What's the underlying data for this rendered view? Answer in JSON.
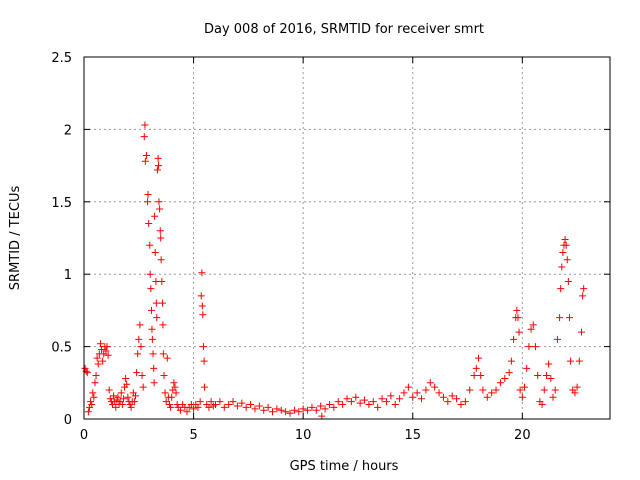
{
  "chart_data": {
    "type": "scatter",
    "title": "Day 008 of 2016, SRMTID for receiver smrt",
    "xlabel": "GPS time / hours",
    "ylabel": "SRMTID / TECUs",
    "xlim": [
      0,
      24
    ],
    "ylim": [
      0,
      2.5
    ],
    "xticks": [
      0,
      5,
      10,
      15,
      20
    ],
    "xtick_labels": [
      "0",
      "5",
      "10",
      "15",
      "20"
    ],
    "yticks": [
      0,
      0.5,
      1,
      1.5,
      2,
      2.5
    ],
    "ytick_labels": [
      "0",
      "0.5",
      "1",
      "1.5",
      "2",
      "2.5"
    ],
    "grid": true,
    "marker": "+",
    "color": "#ff0000",
    "series": [
      {
        "name": "SRMTID",
        "points": [
          [
            0.05,
            0.35
          ],
          [
            0.1,
            0.33
          ],
          [
            0.15,
            0.32
          ],
          [
            0.2,
            0.05
          ],
          [
            0.25,
            0.08
          ],
          [
            0.3,
            0.12
          ],
          [
            0.35,
            0.1
          ],
          [
            0.4,
            0.18
          ],
          [
            0.45,
            0.15
          ],
          [
            0.5,
            0.25
          ],
          [
            0.55,
            0.3
          ],
          [
            0.6,
            0.42
          ],
          [
            0.65,
            0.38
          ],
          [
            0.7,
            0.45
          ],
          [
            0.75,
            0.52
          ],
          [
            0.8,
            0.48
          ],
          [
            0.85,
            0.4
          ],
          [
            0.9,
            0.45
          ],
          [
            0.95,
            0.5
          ],
          [
            1.0,
            0.47
          ],
          [
            1.05,
            0.5
          ],
          [
            1.1,
            0.44
          ],
          [
            1.15,
            0.2
          ],
          [
            1.2,
            0.14
          ],
          [
            1.25,
            0.12
          ],
          [
            1.3,
            0.1
          ],
          [
            1.35,
            0.16
          ],
          [
            1.4,
            0.12
          ],
          [
            1.45,
            0.08
          ],
          [
            1.5,
            0.13
          ],
          [
            1.55,
            0.15
          ],
          [
            1.6,
            0.1
          ],
          [
            1.65,
            0.12
          ],
          [
            1.7,
            0.18
          ],
          [
            1.75,
            0.1
          ],
          [
            1.8,
            0.14
          ],
          [
            1.85,
            0.22
          ],
          [
            1.9,
            0.28
          ],
          [
            1.95,
            0.24
          ],
          [
            2.0,
            0.15
          ],
          [
            2.05,
            0.12
          ],
          [
            2.1,
            0.1
          ],
          [
            2.15,
            0.08
          ],
          [
            2.2,
            0.12
          ],
          [
            2.25,
            0.18
          ],
          [
            2.3,
            0.12
          ],
          [
            2.35,
            0.16
          ],
          [
            2.4,
            0.32
          ],
          [
            2.45,
            0.45
          ],
          [
            2.5,
            0.55
          ],
          [
            2.55,
            0.65
          ],
          [
            2.6,
            0.5
          ],
          [
            2.65,
            0.3
          ],
          [
            2.7,
            0.22
          ],
          [
            2.75,
            1.95
          ],
          [
            2.78,
            2.03
          ],
          [
            2.8,
            1.78
          ],
          [
            2.85,
            1.82
          ],
          [
            2.9,
            1.5
          ],
          [
            2.92,
            1.55
          ],
          [
            2.95,
            1.35
          ],
          [
            3.0,
            1.2
          ],
          [
            3.02,
            1.0
          ],
          [
            3.05,
            0.9
          ],
          [
            3.08,
            0.75
          ],
          [
            3.1,
            0.62
          ],
          [
            3.12,
            0.55
          ],
          [
            3.15,
            0.45
          ],
          [
            3.18,
            0.35
          ],
          [
            3.2,
            0.25
          ],
          [
            3.22,
            1.4
          ],
          [
            3.25,
            1.15
          ],
          [
            3.28,
            0.95
          ],
          [
            3.3,
            0.8
          ],
          [
            3.32,
            0.7
          ],
          [
            3.35,
            1.72
          ],
          [
            3.38,
            1.8
          ],
          [
            3.4,
            1.75
          ],
          [
            3.42,
            1.5
          ],
          [
            3.45,
            1.45
          ],
          [
            3.48,
            1.3
          ],
          [
            3.5,
            1.25
          ],
          [
            3.52,
            1.1
          ],
          [
            3.55,
            0.95
          ],
          [
            3.58,
            0.8
          ],
          [
            3.6,
            0.65
          ],
          [
            3.62,
            0.45
          ],
          [
            3.65,
            0.3
          ],
          [
            3.7,
            0.18
          ],
          [
            3.75,
            0.12
          ],
          [
            3.8,
            0.42
          ],
          [
            3.85,
            0.15
          ],
          [
            3.9,
            0.1
          ],
          [
            3.95,
            0.08
          ],
          [
            4.0,
            0.15
          ],
          [
            4.05,
            0.2
          ],
          [
            4.1,
            0.25
          ],
          [
            4.15,
            0.22
          ],
          [
            4.2,
            0.18
          ],
          [
            4.25,
            0.1
          ],
          [
            4.3,
            0.08
          ],
          [
            4.4,
            0.06
          ],
          [
            4.5,
            0.1
          ],
          [
            4.6,
            0.08
          ],
          [
            4.7,
            0.05
          ],
          [
            4.8,
            0.08
          ],
          [
            4.9,
            0.1
          ],
          [
            5.0,
            0.07
          ],
          [
            5.1,
            0.1
          ],
          [
            5.2,
            0.08
          ],
          [
            5.3,
            0.12
          ],
          [
            5.35,
            0.85
          ],
          [
            5.38,
            1.01
          ],
          [
            5.4,
            0.78
          ],
          [
            5.42,
            0.72
          ],
          [
            5.45,
            0.5
          ],
          [
            5.48,
            0.4
          ],
          [
            5.5,
            0.22
          ],
          [
            5.6,
            0.1
          ],
          [
            5.7,
            0.08
          ],
          [
            5.8,
            0.12
          ],
          [
            5.9,
            0.09
          ],
          [
            6.0,
            0.1
          ],
          [
            6.2,
            0.12
          ],
          [
            6.4,
            0.08
          ],
          [
            6.6,
            0.1
          ],
          [
            6.8,
            0.12
          ],
          [
            7.0,
            0.09
          ],
          [
            7.2,
            0.11
          ],
          [
            7.4,
            0.08
          ],
          [
            7.6,
            0.1
          ],
          [
            7.8,
            0.07
          ],
          [
            8.0,
            0.09
          ],
          [
            8.2,
            0.06
          ],
          [
            8.4,
            0.08
          ],
          [
            8.6,
            0.05
          ],
          [
            8.8,
            0.07
          ],
          [
            9.0,
            0.06
          ],
          [
            9.2,
            0.05
          ],
          [
            9.4,
            0.04
          ],
          [
            9.6,
            0.06
          ],
          [
            9.8,
            0.05
          ],
          [
            10.0,
            0.07
          ],
          [
            10.2,
            0.06
          ],
          [
            10.4,
            0.08
          ],
          [
            10.6,
            0.06
          ],
          [
            10.8,
            0.09
          ],
          [
            10.85,
            0.02
          ],
          [
            11.0,
            0.07
          ],
          [
            11.2,
            0.1
          ],
          [
            11.4,
            0.08
          ],
          [
            11.6,
            0.12
          ],
          [
            11.8,
            0.1
          ],
          [
            12.0,
            0.14
          ],
          [
            12.2,
            0.12
          ],
          [
            12.4,
            0.15
          ],
          [
            12.6,
            0.11
          ],
          [
            12.8,
            0.13
          ],
          [
            13.0,
            0.1
          ],
          [
            13.2,
            0.12
          ],
          [
            13.4,
            0.08
          ],
          [
            13.6,
            0.14
          ],
          [
            13.8,
            0.12
          ],
          [
            14.0,
            0.16
          ],
          [
            14.2,
            0.1
          ],
          [
            14.4,
            0.14
          ],
          [
            14.6,
            0.18
          ],
          [
            14.8,
            0.22
          ],
          [
            15.0,
            0.15
          ],
          [
            15.2,
            0.18
          ],
          [
            15.4,
            0.14
          ],
          [
            15.6,
            0.2
          ],
          [
            15.8,
            0.25
          ],
          [
            16.0,
            0.22
          ],
          [
            16.2,
            0.18
          ],
          [
            16.4,
            0.15
          ],
          [
            16.6,
            0.12
          ],
          [
            16.8,
            0.16
          ],
          [
            17.0,
            0.14
          ],
          [
            17.2,
            0.1
          ],
          [
            17.4,
            0.12
          ],
          [
            17.6,
            0.2
          ],
          [
            17.8,
            0.3
          ],
          [
            17.9,
            0.35
          ],
          [
            18.0,
            0.42
          ],
          [
            18.1,
            0.3
          ],
          [
            18.2,
            0.2
          ],
          [
            18.4,
            0.15
          ],
          [
            18.6,
            0.18
          ],
          [
            18.8,
            0.2
          ],
          [
            19.0,
            0.25
          ],
          [
            19.2,
            0.28
          ],
          [
            19.4,
            0.32
          ],
          [
            19.5,
            0.4
          ],
          [
            19.6,
            0.55
          ],
          [
            19.7,
            0.7
          ],
          [
            19.75,
            0.75
          ],
          [
            19.8,
            0.7
          ],
          [
            19.85,
            0.6
          ],
          [
            19.9,
            0.2
          ],
          [
            20.0,
            0.15
          ],
          [
            20.1,
            0.22
          ],
          [
            20.2,
            0.35
          ],
          [
            20.3,
            0.5
          ],
          [
            20.4,
            0.62
          ],
          [
            20.5,
            0.65
          ],
          [
            20.6,
            0.5
          ],
          [
            20.7,
            0.3
          ],
          [
            20.8,
            0.12
          ],
          [
            20.9,
            0.1
          ],
          [
            21.0,
            0.2
          ],
          [
            21.1,
            0.3
          ],
          [
            21.2,
            0.38
          ],
          [
            21.3,
            0.28
          ],
          [
            21.4,
            0.15
          ],
          [
            21.5,
            0.2
          ],
          [
            21.6,
            0.55
          ],
          [
            21.7,
            0.7
          ],
          [
            21.75,
            0.9
          ],
          [
            21.8,
            1.05
          ],
          [
            21.85,
            1.15
          ],
          [
            21.9,
            1.2
          ],
          [
            21.95,
            1.24
          ],
          [
            22.0,
            1.2
          ],
          [
            22.05,
            1.1
          ],
          [
            22.1,
            0.95
          ],
          [
            22.15,
            0.7
          ],
          [
            22.2,
            0.4
          ],
          [
            22.3,
            0.2
          ],
          [
            22.4,
            0.18
          ],
          [
            22.5,
            0.22
          ],
          [
            22.6,
            0.4
          ],
          [
            22.7,
            0.6
          ],
          [
            22.75,
            0.85
          ],
          [
            22.8,
            0.9
          ]
        ]
      }
    ]
  }
}
